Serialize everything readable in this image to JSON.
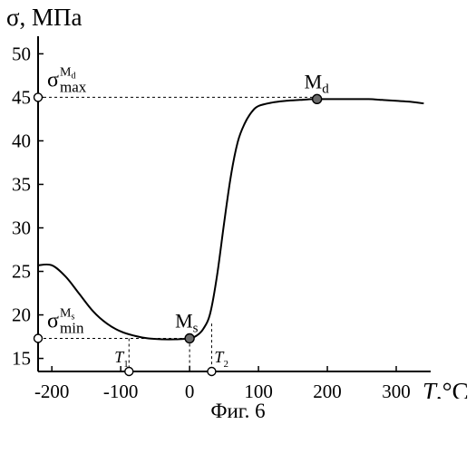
{
  "caption": "Фиг. 6",
  "chart_data": {
    "type": "line",
    "title": "",
    "ylabel": "σ, МПа",
    "xlabel": "T,°C",
    "xlim": [
      -220,
      350
    ],
    "ylim": [
      13.5,
      51.5
    ],
    "xticks": [
      -200,
      -100,
      0,
      100,
      200,
      300
    ],
    "xtick_labels": [
      "-200",
      "-100",
      "0",
      "100",
      "200",
      "300"
    ],
    "yticks": [
      15,
      20,
      25,
      30,
      35,
      40,
      45,
      50
    ],
    "ytick_labels": [
      "15",
      "20",
      "25",
      "30",
      "35",
      "40",
      "45",
      "50"
    ],
    "grid": false,
    "series": [
      {
        "x": [
          -220,
          -200,
          -180,
          -160,
          -140,
          -120,
          -100,
          -80,
          -60,
          -40,
          -20,
          0,
          10,
          20,
          30,
          40,
          50,
          60,
          70,
          80,
          90,
          100,
          120,
          140,
          160,
          180,
          200,
          220,
          240,
          260,
          280,
          300,
          320,
          340
        ],
        "y": [
          25.7,
          25.7,
          24.4,
          22.4,
          20.4,
          19.0,
          18.1,
          17.6,
          17.3,
          17.2,
          17.2,
          17.3,
          17.6,
          18.4,
          20.2,
          24.6,
          30.5,
          36.0,
          39.9,
          42.0,
          43.3,
          44.0,
          44.4,
          44.6,
          44.7,
          44.8,
          44.8,
          44.8,
          44.8,
          44.8,
          44.7,
          44.6,
          44.5,
          44.3
        ]
      }
    ],
    "points": [
      {
        "label": "M",
        "sub": "s",
        "x": 0,
        "y": 17.3
      },
      {
        "label": "M",
        "sub": "d",
        "x": 185,
        "y": 44.8
      }
    ],
    "y_markers": [
      {
        "label": "σ",
        "sup": "M",
        "sup_sub": "d",
        "sub": "max",
        "y": 45,
        "x_end": 185
      },
      {
        "label": "σ",
        "sup": "M",
        "sup_sub": "s",
        "sub": "min",
        "y": 17.3,
        "x_end": 0
      }
    ],
    "x_markers": [
      {
        "label": "T",
        "sub": "1",
        "x": -88,
        "y_top": 17.3
      },
      {
        "label": "T",
        "sub": "2",
        "x": 32,
        "y_top": 19.0
      }
    ]
  }
}
